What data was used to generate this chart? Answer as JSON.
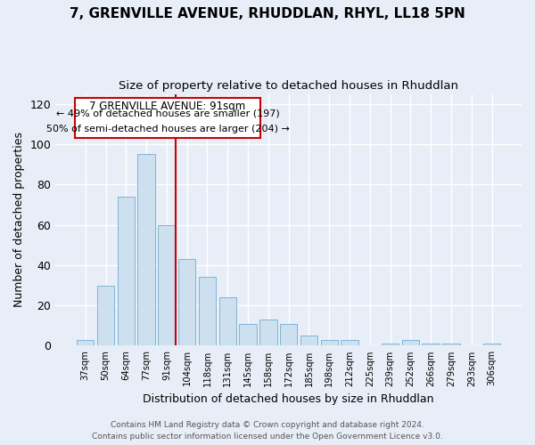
{
  "title1": "7, GRENVILLE AVENUE, RHUDDLAN, RHYL, LL18 5PN",
  "title2": "Size of property relative to detached houses in Rhuddlan",
  "xlabel": "Distribution of detached houses by size in Rhuddlan",
  "ylabel": "Number of detached properties",
  "categories": [
    "37sqm",
    "50sqm",
    "64sqm",
    "77sqm",
    "91sqm",
    "104sqm",
    "118sqm",
    "131sqm",
    "145sqm",
    "158sqm",
    "172sqm",
    "185sqm",
    "198sqm",
    "212sqm",
    "225sqm",
    "239sqm",
    "252sqm",
    "266sqm",
    "279sqm",
    "293sqm",
    "306sqm"
  ],
  "values": [
    3,
    30,
    74,
    95,
    60,
    43,
    34,
    24,
    11,
    13,
    11,
    5,
    3,
    3,
    0,
    1,
    3,
    1,
    1,
    0,
    1
  ],
  "bar_color": "#cce0f0",
  "bar_edge_color": "#7fb5d5",
  "marker_idx": 4,
  "marker_color": "#cc0000",
  "annotation_title": "7 GRENVILLE AVENUE: 91sqm",
  "annotation_line1": "← 49% of detached houses are smaller (197)",
  "annotation_line2": "50% of semi-detached houses are larger (204) →",
  "annotation_box_color": "#ffffff",
  "annotation_box_edge": "#cc0000",
  "footer1": "Contains HM Land Registry data © Crown copyright and database right 2024.",
  "footer2": "Contains public sector information licensed under the Open Government Licence v3.0.",
  "bg_color": "#e8eef7",
  "ylim": [
    0,
    125
  ],
  "yticks": [
    0,
    20,
    40,
    60,
    80,
    100,
    120
  ]
}
